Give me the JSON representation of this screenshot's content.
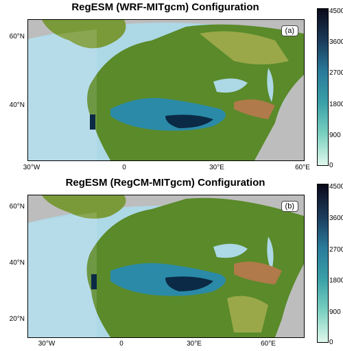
{
  "panel_a": {
    "title": "RegESM (WRF-MITgcm) Configuration",
    "tag": "(a)",
    "lat_labels": [
      "60°N",
      "40°N"
    ],
    "lon_labels": [
      "30°W",
      "0",
      "30°E",
      "60°E"
    ],
    "colorbar_labels": [
      "4500",
      "3600",
      "2700",
      "1800",
      "900",
      "0"
    ]
  },
  "panel_b": {
    "title": "RegESM (RegCM-MITgcm) Configuration",
    "tag": "(b)",
    "lat_labels": [
      "60°N",
      "40°N",
      "20°N"
    ],
    "lon_labels": [
      "30°W",
      "0",
      "30°E",
      "60°E"
    ],
    "colorbar_labels": [
      "4500",
      "3600",
      "2700",
      "1800",
      "900",
      "0"
    ]
  },
  "colors": {
    "ocean": "#add8e6",
    "outside_domain": "#bdbdbd",
    "low_terrain": "#5a8a2a",
    "mid_terrain": "#9aa84a",
    "high_terrain": "#b07a4a",
    "deep_sea": "#0b2a45",
    "shallow_sea": "#2a8aa8"
  }
}
